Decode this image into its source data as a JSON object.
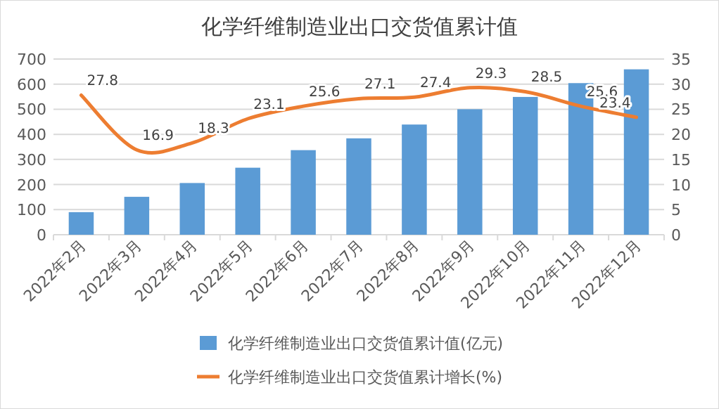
{
  "chart_data": {
    "type": "bar",
    "title": "化学纤维制造业出口交货值累计值",
    "categories": [
      "2022年2月",
      "2022年3月",
      "2022年4月",
      "2022年5月",
      "2022年6月",
      "2022年7月",
      "2022年8月",
      "2022年9月",
      "2022年10月",
      "2022年11月",
      "2022年12月"
    ],
    "series": [
      {
        "name": "化学纤维制造业出口交货值累计值(亿元)",
        "color": "#5b9bd5",
        "values": [
          90,
          151,
          206,
          267,
          337,
          384,
          439,
          500,
          549,
          604,
          659
        ]
      },
      {
        "name": "化学纤维制造业出口交货值累计增长(%)",
        "type": "line",
        "axis": "y2",
        "color": "#ed7d31",
        "values": [
          27.8,
          16.9,
          18.3,
          23.1,
          25.6,
          27.1,
          27.4,
          29.3,
          28.5,
          25.6,
          23.4
        ],
        "value_labels": [
          "27.8",
          "16.9",
          "18.3",
          "23.1",
          "25.6",
          "27.1",
          "27.4",
          "29.3",
          "28.5",
          "25.6",
          "23.4"
        ]
      }
    ],
    "ylim": [
      0,
      700
    ],
    "yticks": [
      0,
      100,
      200,
      300,
      400,
      500,
      600,
      700
    ],
    "y2lim": [
      0,
      35
    ],
    "y2ticks": [
      0,
      5,
      10,
      15,
      20,
      25,
      30,
      35
    ],
    "grid": "y",
    "legend": "bottom",
    "marker": "none",
    "line_style": "solid"
  }
}
